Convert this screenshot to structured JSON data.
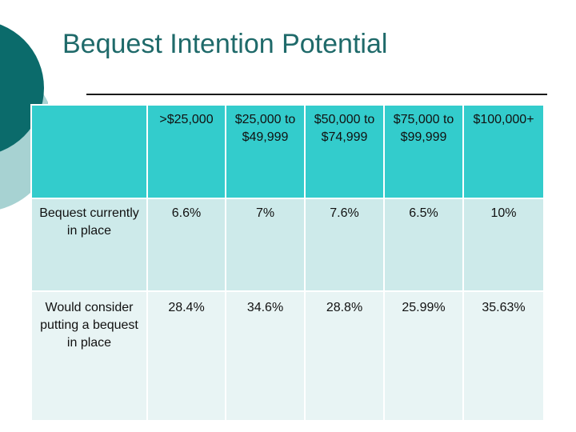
{
  "title": "Bequest Intention Potential",
  "colors": {
    "accent_dark": "#0b6b6b",
    "accent_light": "#a7d2d2",
    "header_bg": "#33cccc",
    "row1_bg": "#cdeaea",
    "row2_bg": "#e8f4f4",
    "title_color": "#1f6a6a"
  },
  "table": {
    "headers": [
      "",
      ">$25,000",
      "$25,000 to $49,999",
      "$50,000 to $74,999",
      "$75,000 to $99,999",
      "$100,000+"
    ],
    "rows": [
      {
        "label": "Bequest currently in place",
        "values": [
          "6.6%",
          "7%",
          "7.6%",
          "6.5%",
          "10%"
        ]
      },
      {
        "label": "Would consider putting a bequest in place",
        "values": [
          "28.4%",
          "34.6%",
          "28.8%",
          "25.99%",
          "35.63%"
        ]
      }
    ]
  }
}
